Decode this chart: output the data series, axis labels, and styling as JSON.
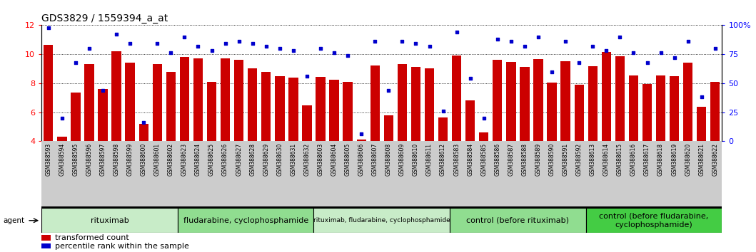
{
  "title": "GDS3829 / 1559394_a_at",
  "categories": [
    "GSM388593",
    "GSM388594",
    "GSM388595",
    "GSM388596",
    "GSM388597",
    "GSM388598",
    "GSM388599",
    "GSM388600",
    "GSM388601",
    "GSM388602",
    "GSM388623",
    "GSM388624",
    "GSM388625",
    "GSM388626",
    "GSM388627",
    "GSM388628",
    "GSM388629",
    "GSM388630",
    "GSM388631",
    "GSM388632",
    "GSM388603",
    "GSM388604",
    "GSM388605",
    "GSM388606",
    "GSM388607",
    "GSM388608",
    "GSM388609",
    "GSM388610",
    "GSM388611",
    "GSM388612",
    "GSM388583",
    "GSM388584",
    "GSM388585",
    "GSM388586",
    "GSM388587",
    "GSM388588",
    "GSM388589",
    "GSM388590",
    "GSM388591",
    "GSM388592",
    "GSM388613",
    "GSM388614",
    "GSM388615",
    "GSM388616",
    "GSM388617",
    "GSM388618",
    "GSM388619",
    "GSM388620",
    "GSM388621",
    "GSM388622"
  ],
  "bar_values": [
    10.65,
    4.3,
    7.35,
    9.3,
    7.6,
    10.2,
    9.4,
    5.2,
    9.3,
    8.8,
    9.8,
    9.7,
    8.1,
    9.7,
    9.6,
    9.0,
    8.8,
    8.5,
    8.4,
    6.45,
    8.45,
    8.25,
    8.1,
    4.1,
    9.2,
    5.8,
    9.3,
    9.1,
    9.0,
    5.65,
    9.9,
    6.8,
    4.6,
    9.6,
    9.45,
    9.1,
    9.65,
    8.05,
    9.5,
    7.9,
    9.15,
    10.15,
    9.85,
    8.55,
    7.95,
    8.55,
    8.5,
    9.4,
    6.35,
    8.1
  ],
  "dot_values": [
    98,
    20,
    68,
    80,
    44,
    92,
    84,
    16,
    84,
    76,
    90,
    82,
    78,
    84,
    86,
    84,
    82,
    80,
    78,
    56,
    80,
    76,
    74,
    6,
    86,
    44,
    86,
    84,
    82,
    26,
    94,
    54,
    20,
    88,
    86,
    82,
    90,
    60,
    86,
    68,
    82,
    78,
    90,
    76,
    68,
    76,
    72,
    86,
    38,
    80
  ],
  "groups": [
    {
      "label": "rituximab",
      "start": 0,
      "end": 10,
      "color": "#d4efd4"
    },
    {
      "label": "fludarabine, cyclophosphamide",
      "start": 10,
      "end": 20,
      "color": "#a0e0a0"
    },
    {
      "label": "rituximab, fludarabine, cyclophosphamide",
      "start": 20,
      "end": 30,
      "color": "#d4efd4"
    },
    {
      "label": "control (before rituximab)",
      "start": 30,
      "end": 40,
      "color": "#a0e0a0"
    },
    {
      "label": "control (before fludarabine,\ncyclophosphamide)",
      "start": 40,
      "end": 50,
      "color": "#50dd50"
    }
  ],
  "bar_color": "#cc0000",
  "dot_color": "#0000cc",
  "ylim_left": [
    4,
    12
  ],
  "ylim_right": [
    0,
    100
  ],
  "yticks_left": [
    4,
    6,
    8,
    10,
    12
  ],
  "yticks_right": [
    0,
    25,
    50,
    75,
    100
  ],
  "yticklabels_right": [
    "0",
    "25",
    "50",
    "75",
    "100%"
  ],
  "title_fontsize": 10,
  "legend_items": [
    "transformed count",
    "percentile rank within the sample"
  ],
  "group_font_sizes": [
    8,
    8,
    6.5,
    8,
    8
  ]
}
